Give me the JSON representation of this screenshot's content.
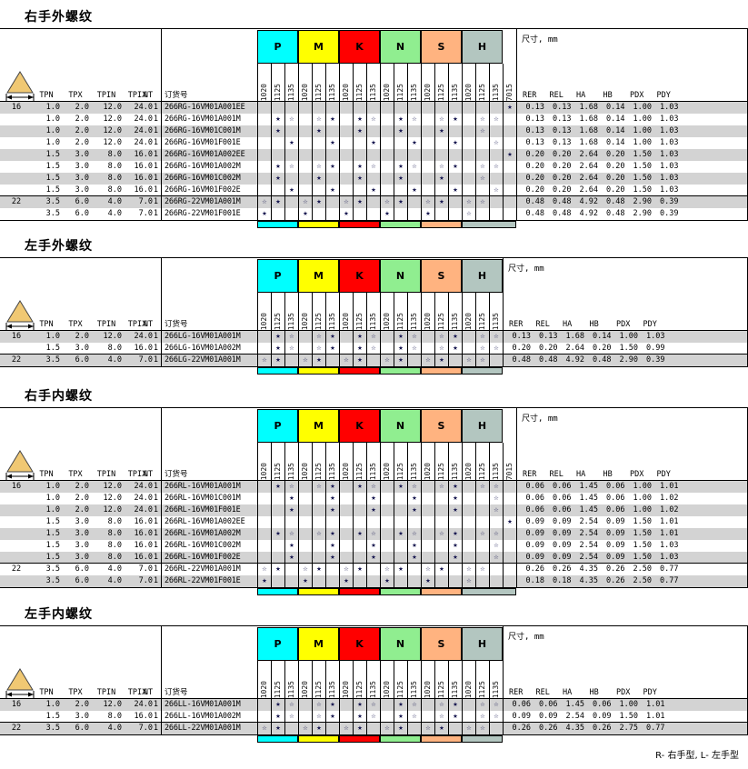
{
  "footer": "R- 右手型, L- 左手型",
  "shared": {
    "dim_title": "尺寸, mm",
    "order_label": "订货号",
    "spec_headers": [
      "TPN",
      "TPX",
      "TPIN",
      "TPIX",
      "NT"
    ],
    "dim_headers": [
      "RER",
      "REL",
      "HA",
      "HB",
      "PDX",
      "PDY"
    ],
    "groups": [
      {
        "label": "P",
        "color": "#00FFFF"
      },
      {
        "label": "M",
        "color": "#FFFF00"
      },
      {
        "label": "K",
        "color": "#FF0000"
      },
      {
        "label": "N",
        "color": "#90EE90"
      },
      {
        "label": "S",
        "color": "#FFB380"
      },
      {
        "label": "H",
        "color": "#B3C6C0"
      }
    ],
    "grade_labels": [
      "1020",
      "1125",
      "1135"
    ],
    "extra_grade": "7015",
    "star_filled": "★",
    "star_outline": "☆",
    "insert_icon": "triangle-insert-icon",
    "icon_fill": "#F0C873"
  },
  "sections": [
    {
      "title": "右手外螺纹",
      "has_extra": true,
      "rows": [
        {
          "ic": "16",
          "specs": [
            "1.0",
            "2.0",
            "12.0",
            "24.0",
            "1"
          ],
          "order": "266RG-16VM01A001EE",
          "stars": "..................f",
          "dims": [
            "0.13",
            "0.13",
            "1.68",
            "0.14",
            "1.00",
            "1.03"
          ],
          "group_start": false
        },
        {
          "ic": "",
          "specs": [
            "1.0",
            "2.0",
            "12.0",
            "24.0",
            "1"
          ],
          "order": "266RG-16VM01A001M",
          "stars": ".fo.of.fo.fo.of.oo.",
          "dims": [
            "0.13",
            "0.13",
            "1.68",
            "0.14",
            "1.00",
            "1.03"
          ],
          "group_start": false
        },
        {
          "ic": "",
          "specs": [
            "1.0",
            "2.0",
            "12.0",
            "24.0",
            "1"
          ],
          "order": "266RG-16VM01C001M",
          "stars": ".f..f..f..f..f..o..",
          "dims": [
            "0.13",
            "0.13",
            "1.68",
            "0.14",
            "1.00",
            "1.03"
          ],
          "group_start": false
        },
        {
          "ic": "",
          "specs": [
            "1.0",
            "2.0",
            "12.0",
            "24.0",
            "1"
          ],
          "order": "266RG-16VM01F001E",
          "stars": "..f..f..f..f..f..o.",
          "dims": [
            "0.13",
            "0.13",
            "1.68",
            "0.14",
            "1.00",
            "1.03"
          ],
          "group_start": false
        },
        {
          "ic": "",
          "specs": [
            "1.5",
            "3.0",
            "8.0",
            "16.0",
            "1"
          ],
          "order": "266RG-16VM01A002EE",
          "stars": "..................f",
          "dims": [
            "0.20",
            "0.20",
            "2.64",
            "0.20",
            "1.50",
            "1.03"
          ],
          "group_start": false
        },
        {
          "ic": "",
          "specs": [
            "1.5",
            "3.0",
            "8.0",
            "16.0",
            "1"
          ],
          "order": "266RG-16VM01A002M",
          "stars": ".fo.of.fo.fo.of.oo.",
          "dims": [
            "0.20",
            "0.20",
            "2.64",
            "0.20",
            "1.50",
            "1.03"
          ],
          "group_start": false
        },
        {
          "ic": "",
          "specs": [
            "1.5",
            "3.0",
            "8.0",
            "16.0",
            "1"
          ],
          "order": "266RG-16VM01C002M",
          "stars": ".f..f..f..f..f..o..",
          "dims": [
            "0.20",
            "0.20",
            "2.64",
            "0.20",
            "1.50",
            "1.03"
          ],
          "group_start": false
        },
        {
          "ic": "",
          "specs": [
            "1.5",
            "3.0",
            "8.0",
            "16.0",
            "1"
          ],
          "order": "266RG-16VM01F002E",
          "stars": "..f..f..f..f..f..o.",
          "dims": [
            "0.20",
            "0.20",
            "2.64",
            "0.20",
            "1.50",
            "1.03"
          ],
          "group_start": false
        },
        {
          "ic": "22",
          "specs": [
            "3.5",
            "6.0",
            "4.0",
            "7.0",
            "1"
          ],
          "order": "266RG-22VM01A001M",
          "stars": "of.of.of.of.of.oo..",
          "dims": [
            "0.48",
            "0.48",
            "4.92",
            "0.48",
            "2.90",
            "0.39"
          ],
          "group_start": true
        },
        {
          "ic": "",
          "specs": [
            "3.5",
            "6.0",
            "4.0",
            "7.0",
            "1"
          ],
          "order": "266RG-22VM01F001E",
          "stars": "f..f..f..f..f..o...",
          "dims": [
            "0.48",
            "0.48",
            "4.92",
            "0.48",
            "2.90",
            "0.39"
          ],
          "group_start": false
        }
      ]
    },
    {
      "title": "左手外螺纹",
      "has_extra": false,
      "rows": [
        {
          "ic": "16",
          "specs": [
            "1.0",
            "2.0",
            "12.0",
            "24.0",
            "1"
          ],
          "order": "266LG-16VM01A001M",
          "stars": ".fo.of.fo.fo.of.oo",
          "dims": [
            "0.13",
            "0.13",
            "1.68",
            "0.14",
            "1.00",
            "1.03"
          ],
          "group_start": false
        },
        {
          "ic": "",
          "specs": [
            "1.5",
            "3.0",
            "8.0",
            "16.0",
            "1"
          ],
          "order": "266LG-16VM01A002M",
          "stars": ".fo.of.fo.fo.of.oo",
          "dims": [
            "0.20",
            "0.20",
            "2.64",
            "0.20",
            "1.50",
            "0.99"
          ],
          "group_start": false
        },
        {
          "ic": "22",
          "specs": [
            "3.5",
            "6.0",
            "4.0",
            "7.0",
            "1"
          ],
          "order": "266LG-22VM01A001M",
          "stars": "of.of.of.of.of.oo.",
          "dims": [
            "0.48",
            "0.48",
            "4.92",
            "0.48",
            "2.90",
            "0.39"
          ],
          "group_start": true
        }
      ]
    },
    {
      "title": "右手内螺纹",
      "has_extra": true,
      "rows": [
        {
          "ic": "16",
          "specs": [
            "1.0",
            "2.0",
            "12.0",
            "24.0",
            "1"
          ],
          "order": "266RL-16VM01A001M",
          "stars": ".fo.of.fo.fo.of.oo.",
          "dims": [
            "0.06",
            "0.06",
            "1.45",
            "0.06",
            "1.00",
            "1.01"
          ],
          "group_start": false
        },
        {
          "ic": "",
          "specs": [
            "1.0",
            "2.0",
            "12.0",
            "24.0",
            "1"
          ],
          "order": "266RL-16VM01C001M",
          "stars": "..f..f..f..f..f..o.",
          "dims": [
            "0.06",
            "0.06",
            "1.45",
            "0.06",
            "1.00",
            "1.02"
          ],
          "group_start": false
        },
        {
          "ic": "",
          "specs": [
            "1.0",
            "2.0",
            "12.0",
            "24.0",
            "1"
          ],
          "order": "266RL-16VM01F001E",
          "stars": "..f..f..f..f..f..o.",
          "dims": [
            "0.06",
            "0.06",
            "1.45",
            "0.06",
            "1.00",
            "1.02"
          ],
          "group_start": false
        },
        {
          "ic": "",
          "specs": [
            "1.5",
            "3.0",
            "8.0",
            "16.0",
            "1"
          ],
          "order": "266RL-16VM01A002EE",
          "stars": "..................f",
          "dims": [
            "0.09",
            "0.09",
            "2.54",
            "0.09",
            "1.50",
            "1.01"
          ],
          "group_start": false
        },
        {
          "ic": "",
          "specs": [
            "1.5",
            "3.0",
            "8.0",
            "16.0",
            "1"
          ],
          "order": "266RL-16VM01A002M",
          "stars": ".fo.of.fo.fo.of.oo.",
          "dims": [
            "0.09",
            "0.09",
            "2.54",
            "0.09",
            "1.50",
            "1.01"
          ],
          "group_start": false
        },
        {
          "ic": "",
          "specs": [
            "1.5",
            "3.0",
            "8.0",
            "16.0",
            "1"
          ],
          "order": "266RL-16VM01C002M",
          "stars": "..f..f..f..f..f..o.",
          "dims": [
            "0.09",
            "0.09",
            "2.54",
            "0.09",
            "1.50",
            "1.03"
          ],
          "group_start": false
        },
        {
          "ic": "",
          "specs": [
            "1.5",
            "3.0",
            "8.0",
            "16.0",
            "1"
          ],
          "order": "266RL-16VM01F002E",
          "stars": "..f..f..f..f..f..o.",
          "dims": [
            "0.09",
            "0.09",
            "2.54",
            "0.09",
            "1.50",
            "1.03"
          ],
          "group_start": false
        },
        {
          "ic": "22",
          "specs": [
            "3.5",
            "6.0",
            "4.0",
            "7.0",
            "1"
          ],
          "order": "266RL-22VM01A001M",
          "stars": "of.of.of.of.of.oo..",
          "dims": [
            "0.26",
            "0.26",
            "4.35",
            "0.26",
            "2.50",
            "0.77"
          ],
          "group_start": true
        },
        {
          "ic": "",
          "specs": [
            "3.5",
            "6.0",
            "4.0",
            "7.0",
            "1"
          ],
          "order": "266RL-22VM01F001E",
          "stars": "f..f..f..f..f..o...",
          "dims": [
            "0.18",
            "0.18",
            "4.35",
            "0.26",
            "2.50",
            "0.77"
          ],
          "group_start": false
        }
      ]
    },
    {
      "title": "左手内螺纹",
      "has_extra": false,
      "rows": [
        {
          "ic": "16",
          "specs": [
            "1.0",
            "2.0",
            "12.0",
            "24.0",
            "1"
          ],
          "order": "266LL-16VM01A001M",
          "stars": ".fo.of.fo.fo.of.oo",
          "dims": [
            "0.06",
            "0.06",
            "1.45",
            "0.06",
            "1.00",
            "1.01"
          ],
          "group_start": false
        },
        {
          "ic": "",
          "specs": [
            "1.5",
            "3.0",
            "8.0",
            "16.0",
            "1"
          ],
          "order": "266LL-16VM01A002M",
          "stars": ".fo.of.fo.fo.of.oo",
          "dims": [
            "0.09",
            "0.09",
            "2.54",
            "0.09",
            "1.50",
            "1.01"
          ],
          "group_start": false
        },
        {
          "ic": "22",
          "specs": [
            "3.5",
            "6.0",
            "4.0",
            "7.0",
            "1"
          ],
          "order": "266LL-22VM01A001M",
          "stars": "of.of.of.of.of.oo.",
          "dims": [
            "0.26",
            "0.26",
            "4.35",
            "0.26",
            "2.75",
            "0.77"
          ],
          "group_start": true
        }
      ]
    }
  ]
}
